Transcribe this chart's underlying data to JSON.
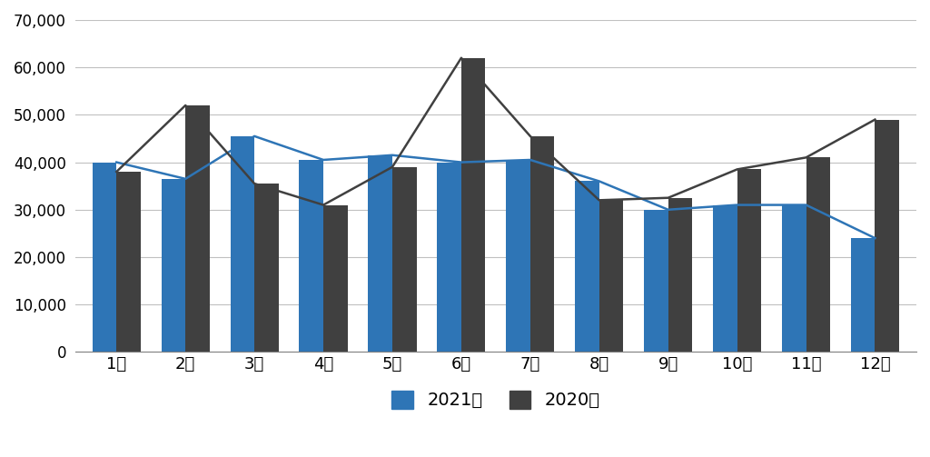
{
  "months": [
    "1월",
    "2월",
    "3월",
    "4월",
    "5월",
    "6월",
    "7월",
    "8월",
    "9월",
    "10월",
    "11월",
    "12월"
  ],
  "bar_2021": [
    40000,
    36500,
    45500,
    40500,
    41500,
    40000,
    40500,
    36000,
    30000,
    31000,
    31000,
    24000
  ],
  "bar_2020": [
    38000,
    52000,
    35500,
    31000,
    39000,
    62000,
    45500,
    32000,
    32500,
    38500,
    41000,
    49000
  ],
  "line_2021": [
    40000,
    36500,
    45500,
    40500,
    41500,
    40000,
    40500,
    36000,
    30000,
    31000,
    31000,
    24000
  ],
  "line_2020": [
    38000,
    52000,
    35500,
    31000,
    39000,
    62000,
    45500,
    32000,
    32500,
    38500,
    41000,
    49000
  ],
  "bar_color_2021": "#2E75B6",
  "bar_color_2020": "#404040",
  "line_color_2021": "#2E75B6",
  "line_color_2020": "#404040",
  "ylim": [
    0,
    70000
  ],
  "yticks": [
    0,
    10000,
    20000,
    30000,
    40000,
    50000,
    60000,
    70000
  ],
  "legend_2021": "2021년",
  "legend_2020": "2020년",
  "background_color": "#ffffff",
  "grid_color": "#c0c0c0"
}
